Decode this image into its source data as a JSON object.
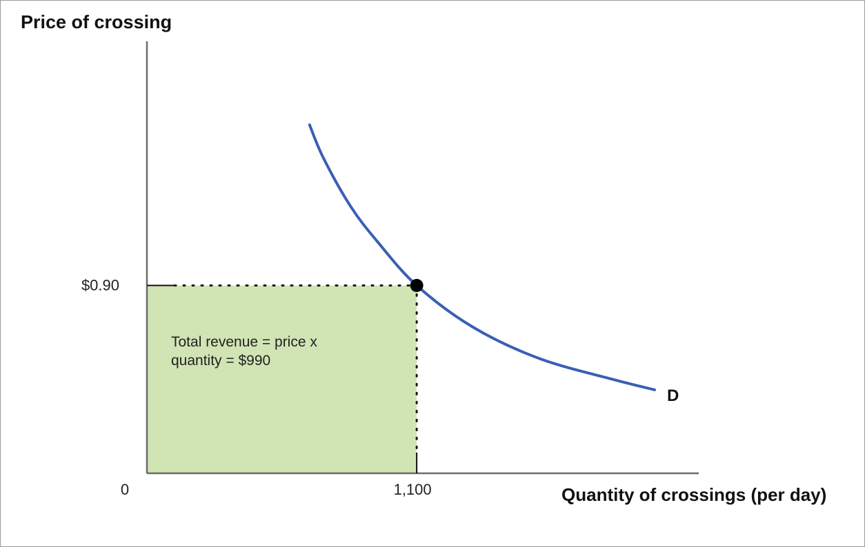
{
  "chart_data": {
    "type": "line",
    "ylabel": "Price of crossing",
    "xlabel": "Quantity of crossings (per day)",
    "origin_label": "0",
    "x_ticks": [
      {
        "value": 1100,
        "label": "1,100"
      }
    ],
    "y_ticks": [
      {
        "value": 0.9,
        "label": "$0.90"
      }
    ],
    "xlim": [
      0,
      2250
    ],
    "ylim": [
      0,
      2.07
    ],
    "series": [
      {
        "name": "D",
        "color": "#3a5fb5",
        "points": [
          [
            663,
            1.67
          ],
          [
            720,
            1.51
          ],
          [
            830,
            1.28
          ],
          [
            940,
            1.11
          ],
          [
            1100,
            0.9
          ],
          [
            1330,
            0.7
          ],
          [
            1600,
            0.55
          ],
          [
            1900,
            0.45
          ],
          [
            2070,
            0.4
          ]
        ]
      }
    ],
    "highlight_point": {
      "x": 1100,
      "y": 0.9,
      "color": "#000000"
    },
    "shaded_region": {
      "x": [
        0,
        1100
      ],
      "y": [
        0,
        0.9
      ],
      "color": "#d1e4b4"
    },
    "annotation": {
      "lines": [
        "Total revenue = price x",
        "quantity = $990"
      ]
    }
  }
}
